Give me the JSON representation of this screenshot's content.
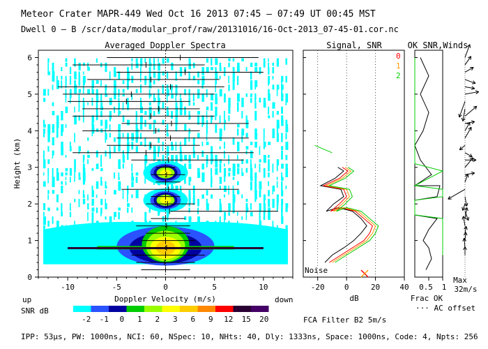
{
  "header": {
    "line1": "Meteor Crater   MAPR-449   Wed Oct 16 2013 07:45 – 07:49 UT 00:45 MST",
    "line2": "Dwell  0 –  B   /scr/data/modular_prof/raw/20131016/16-Oct-2013_07-45-01.cor.nc"
  },
  "footer": "IPP: 53µs,  PW: 1000ns,  NCI: 60,  NSpec: 10, NHts: 40,  Dly: 1333ns,  Space: 1000ns,  Code: 4,  Npts: 256",
  "fca_label": "FCA Filter B2   5m/s",
  "colors": {
    "colorbar": [
      "#00ffff",
      "#2a52ff",
      "#0000a0",
      "#00cc00",
      "#99ff00",
      "#ffff00",
      "#ffcc00",
      "#ff8800",
      "#ff0000",
      "#2a0033",
      "#440066"
    ],
    "signal": "#000000",
    "snr0": "#ff0000",
    "snr1": "#ff9900",
    "snr2": "#00cc00"
  },
  "chart_data": [
    {
      "type": "heatmap",
      "title": "Averaged Doppler Spectra",
      "xlabel": "Doppler Velocity (m/s)",
      "ylabel": "Height (km)",
      "xlim": [
        -13,
        13
      ],
      "ylim": [
        0,
        6.2
      ],
      "xticks": [
        -10,
        -5,
        0,
        5,
        10
      ],
      "yticks": [
        0,
        1,
        2,
        3,
        4,
        5,
        6
      ],
      "x_left_label": "up",
      "x_right_label": "down",
      "colorbar": {
        "label": "SNR dB",
        "ticks": [
          "-2",
          "-1",
          "0",
          "1",
          "2",
          "3",
          "6",
          "9",
          "12",
          "15",
          "20"
        ]
      },
      "velocity_marks": [
        {
          "h": 0.2,
          "v": 0.0,
          "lo": -2.5,
          "hi": 2.5
        },
        {
          "h": 0.4,
          "v": -0.1,
          "lo": -3.0,
          "hi": 3.0
        },
        {
          "h": 0.6,
          "v": 0.0,
          "lo": -3.5,
          "hi": 4.0
        },
        {
          "h": 0.8,
          "v": 0.1,
          "lo": -2.0,
          "hi": 3.5
        },
        {
          "h": 1.0,
          "v": 0.0,
          "lo": -2.5,
          "hi": 3.0
        },
        {
          "h": 1.2,
          "v": -0.2,
          "lo": -2.0,
          "hi": 2.5
        },
        {
          "h": 1.4,
          "v": 0.1,
          "lo": -3.0,
          "hi": 2.5
        },
        {
          "h": 1.6,
          "v": 0.0,
          "lo": -1.5,
          "hi": 2.0
        },
        {
          "h": 1.8,
          "v": 0.4,
          "lo": 0.5,
          "hi": 11.5
        },
        {
          "h": 2.0,
          "v": 0.2,
          "lo": -2.0,
          "hi": 3.0
        },
        {
          "h": 2.2,
          "v": 0.0,
          "lo": -1.5,
          "hi": 1.5
        },
        {
          "h": 2.4,
          "v": 0.3,
          "lo": -4.5,
          "hi": 7.5
        },
        {
          "h": 2.6,
          "v": 0.0,
          "lo": -1.0,
          "hi": 1.5
        },
        {
          "h": 2.8,
          "v": 0.1,
          "lo": -1.5,
          "hi": 2.0
        },
        {
          "h": 3.0,
          "v": 0.0,
          "lo": -1.0,
          "hi": 1.0
        },
        {
          "h": 3.2,
          "v": 0.3,
          "lo": -3.5,
          "hi": 8.0
        },
        {
          "h": 3.4,
          "v": -2.0,
          "lo": -9.5,
          "hi": 9.0
        },
        {
          "h": 3.6,
          "v": -1.5,
          "lo": -6.0,
          "hi": 3.5
        },
        {
          "h": 3.8,
          "v": 0.5,
          "lo": -5.0,
          "hi": 8.5
        },
        {
          "h": 4.0,
          "v": -1.0,
          "lo": -8.5,
          "hi": 3.5
        },
        {
          "h": 4.2,
          "v": 0.6,
          "lo": -4.5,
          "hi": 8.5
        },
        {
          "h": 4.4,
          "v": -1.5,
          "lo": -9.5,
          "hi": 5.0
        },
        {
          "h": 4.6,
          "v": -0.7,
          "lo": -8.5,
          "hi": 3.5
        },
        {
          "h": 4.8,
          "v": -4.0,
          "lo": -10.0,
          "hi": 2.5
        },
        {
          "h": 5.0,
          "v": -3.5,
          "lo": -10.5,
          "hi": 5.0
        },
        {
          "h": 5.2,
          "v": 0.5,
          "lo": -11.0,
          "hi": 6.0
        },
        {
          "h": 5.4,
          "v": -1.5,
          "lo": -8.0,
          "hi": 5.5
        },
        {
          "h": 5.6,
          "v": 2.0,
          "lo": -5.0,
          "hi": 10.0
        },
        {
          "h": 5.8,
          "v": -2.0,
          "lo": -9.5,
          "hi": 4.0
        },
        {
          "h": 6.0,
          "v": 1.5,
          "lo": -6.0,
          "hi": 9.5
        }
      ]
    },
    {
      "type": "line",
      "title": "Signal, SNR",
      "xlabel": "dB",
      "xlim": [
        -30,
        40
      ],
      "xticks": [
        -20,
        0,
        20,
        40
      ],
      "noise_label": "Noise",
      "legend": [
        "0",
        "1",
        "2"
      ],
      "series": [
        {
          "name": "Signal",
          "points": [
            [
              -15,
              0.4
            ],
            [
              -10,
              0.6
            ],
            [
              -2,
              0.8
            ],
            [
              5,
              1.0
            ],
            [
              10,
              1.2
            ],
            [
              14,
              1.4
            ],
            [
              10,
              1.6
            ],
            [
              4,
              1.8
            ],
            [
              -6,
              1.9
            ],
            [
              -14,
              1.8
            ],
            [
              -9,
              2.0
            ],
            [
              -2,
              2.2
            ],
            [
              -4,
              2.4
            ],
            [
              -18,
              2.5
            ],
            [
              -8,
              2.7
            ],
            [
              -2,
              2.9
            ],
            [
              -6,
              3.0
            ]
          ]
        },
        {
          "name": "SNR 0",
          "points": [
            [
              -12,
              0.4
            ],
            [
              -4,
              0.6
            ],
            [
              4,
              0.8
            ],
            [
              12,
              1.0
            ],
            [
              16,
              1.2
            ],
            [
              18,
              1.4
            ],
            [
              12,
              1.6
            ],
            [
              6,
              1.8
            ],
            [
              -4,
              1.9
            ],
            [
              -11,
              1.8
            ],
            [
              -5,
              2.0
            ],
            [
              0,
              2.2
            ],
            [
              -2,
              2.4
            ],
            [
              -16,
              2.5
            ],
            [
              -5,
              2.7
            ],
            [
              1,
              2.9
            ],
            [
              -3,
              3.0
            ]
          ]
        },
        {
          "name": "SNR 1",
          "points": [
            [
              -10,
              0.4
            ],
            [
              -2,
              0.6
            ],
            [
              6,
              0.8
            ],
            [
              14,
              1.0
            ],
            [
              18,
              1.2
            ],
            [
              20,
              1.4
            ],
            [
              14,
              1.6
            ],
            [
              8,
              1.8
            ],
            [
              -2,
              1.9
            ],
            [
              -9,
              1.8
            ],
            [
              -3,
              2.0
            ],
            [
              2,
              2.2
            ],
            [
              0,
              2.4
            ],
            [
              -14,
              2.5
            ],
            [
              -3,
              2.7
            ],
            [
              3,
              2.9
            ],
            [
              -1,
              3.0
            ]
          ]
        },
        {
          "name": "SNR 2",
          "points": [
            [
              -8,
              0.4
            ],
            [
              0,
              0.6
            ],
            [
              8,
              0.8
            ],
            [
              16,
              1.0
            ],
            [
              20,
              1.2
            ],
            [
              22,
              1.4
            ],
            [
              16,
              1.6
            ],
            [
              10,
              1.8
            ],
            [
              0,
              1.9
            ],
            [
              -7,
              1.8
            ],
            [
              -1,
              2.0
            ],
            [
              4,
              2.2
            ],
            [
              2,
              2.4
            ],
            [
              -12,
              2.5
            ],
            [
              -1,
              2.7
            ],
            [
              5,
              2.9
            ],
            [
              1,
              3.0
            ],
            [
              null,
              null
            ],
            [
              -22,
              3.6
            ],
            [
              -10,
              3.4
            ]
          ]
        }
      ]
    },
    {
      "type": "line",
      "title": "OK SNR,Winds",
      "xlabel": "Frac OK",
      "xlim": [
        0,
        1
      ],
      "xticks": [
        0.5,
        1
      ],
      "xtick_labels": [
        "0.5",
        "1"
      ],
      "legend": [
        "AC offset"
      ],
      "max_label": "Max",
      "max_value": "32m/s",
      "series": [
        {
          "name": "Frac OK (black)",
          "points": [
            [
              0.4,
              0.2
            ],
            [
              0.6,
              0.5
            ],
            [
              0.5,
              0.8
            ],
            [
              0.3,
              1.0
            ],
            [
              0.5,
              1.3
            ],
            [
              0.8,
              1.6
            ],
            [
              0.0,
              1.7
            ],
            [
              0.0,
              2.1
            ],
            [
              0.8,
              2.2
            ],
            [
              0.9,
              2.5
            ],
            [
              0.0,
              2.5
            ],
            [
              0.6,
              2.8
            ],
            [
              0.2,
              3.2
            ],
            [
              0.0,
              3.6
            ],
            [
              0.3,
              4.0
            ],
            [
              0.5,
              4.5
            ],
            [
              0.2,
              5.0
            ],
            [
              0.5,
              5.5
            ],
            [
              0.2,
              6.0
            ]
          ]
        },
        {
          "name": "AC offset (green)",
          "points": [
            [
              1.0,
              0.6
            ],
            [
              1.0,
              1.6
            ],
            [
              0.0,
              1.7
            ],
            [
              0.0,
              2.1
            ],
            [
              1.0,
              2.2
            ],
            [
              1.0,
              2.4
            ],
            [
              0.0,
              2.5
            ],
            [
              1.0,
              2.9
            ],
            [
              0.0,
              3.1
            ],
            [
              0.0,
              6.0
            ]
          ]
        }
      ],
      "winds": [
        {
          "h": 6.0,
          "dir": 20,
          "spd": 20
        },
        {
          "h": 5.8,
          "dir": 35,
          "spd": 15
        },
        {
          "h": 5.6,
          "dir": 60,
          "spd": 14
        },
        {
          "h": 5.4,
          "dir": 110,
          "spd": 16
        },
        {
          "h": 5.2,
          "dir": 100,
          "spd": 14
        },
        {
          "h": 5.0,
          "dir": 80,
          "spd": 20
        },
        {
          "h": 4.8,
          "dir": 200,
          "spd": 24
        },
        {
          "h": 4.6,
          "dir": 190,
          "spd": 18
        },
        {
          "h": 4.4,
          "dir": 50,
          "spd": 22
        },
        {
          "h": 4.2,
          "dir": 80,
          "spd": 14
        },
        {
          "h": 4.0,
          "dir": 30,
          "spd": 14
        },
        {
          "h": 3.8,
          "dir": 30,
          "spd": 18
        },
        {
          "h": 3.6,
          "dir": 230,
          "spd": 10
        },
        {
          "h": 3.4,
          "dir": 120,
          "spd": 12
        },
        {
          "h": 3.2,
          "dir": 90,
          "spd": 16
        },
        {
          "h": 3.0,
          "dir": 40,
          "spd": 18
        },
        {
          "h": 2.8,
          "dir": 80,
          "spd": 14
        },
        {
          "h": 2.6,
          "dir": 20,
          "spd": 12
        },
        {
          "h": 2.4,
          "dir": 240,
          "spd": 28
        },
        {
          "h": 2.2,
          "dir": 170,
          "spd": 14
        },
        {
          "h": 2.0,
          "dir": 200,
          "spd": 10
        },
        {
          "h": 1.8,
          "dir": 160,
          "spd": 14
        },
        {
          "h": 1.6,
          "dir": 10,
          "spd": 16
        },
        {
          "h": 1.4,
          "dir": 350,
          "spd": 14
        },
        {
          "h": 1.2,
          "dir": 10,
          "spd": 10
        },
        {
          "h": 1.0,
          "dir": 5,
          "spd": 12
        },
        {
          "h": 0.8,
          "dir": 355,
          "spd": 14
        },
        {
          "h": 0.6,
          "dir": 0,
          "spd": 12
        }
      ]
    }
  ]
}
